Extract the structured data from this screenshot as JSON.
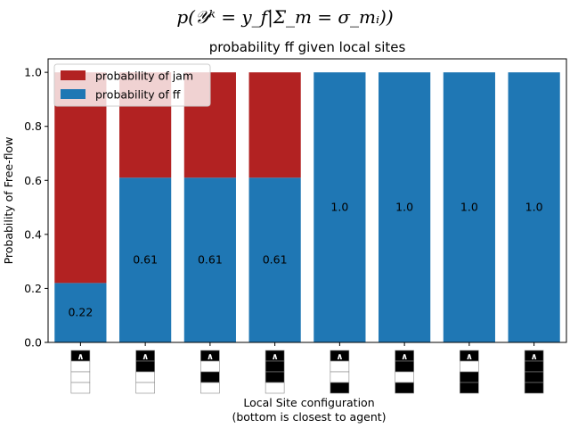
{
  "chart_data": {
    "type": "bar",
    "stacked": true,
    "suptitle": "p(𝒴ᵏ = y_f|Σ_m = σ_mᵢ))",
    "title": "probability ff given local sites",
    "xlabel_line1": "Local Site configuration",
    "xlabel_line2": "(bottom is closest to agent)",
    "ylabel": "Probability of Free-flow",
    "ylim": [
      0,
      1.05
    ],
    "yticks": [
      "0.0",
      "0.2",
      "0.4",
      "0.6",
      "0.8",
      "1.0"
    ],
    "grid": false,
    "legend_position": "top-left",
    "colors": {
      "ff": "#1f77b4",
      "jam": "#b22222"
    },
    "series": [
      {
        "name": "probability of jam",
        "values": [
          0.78,
          0.39,
          0.39,
          0.39,
          0.0,
          0.0,
          0.0,
          0.0
        ]
      },
      {
        "name": "probability of ff",
        "values": [
          0.22,
          0.61,
          0.61,
          0.61,
          1.0,
          1.0,
          1.0,
          1.0
        ]
      }
    ],
    "data_labels": [
      "0.22",
      "0.61",
      "0.61",
      "0.61",
      "1.0",
      "1.0",
      "1.0",
      "1.0"
    ],
    "site_configurations": [
      [
        0,
        0,
        0
      ],
      [
        1,
        0,
        0
      ],
      [
        0,
        1,
        0
      ],
      [
        1,
        1,
        0
      ],
      [
        0,
        0,
        1
      ],
      [
        1,
        0,
        1
      ],
      [
        0,
        1,
        1
      ],
      [
        1,
        1,
        1
      ]
    ],
    "agent_marker": "∧"
  }
}
